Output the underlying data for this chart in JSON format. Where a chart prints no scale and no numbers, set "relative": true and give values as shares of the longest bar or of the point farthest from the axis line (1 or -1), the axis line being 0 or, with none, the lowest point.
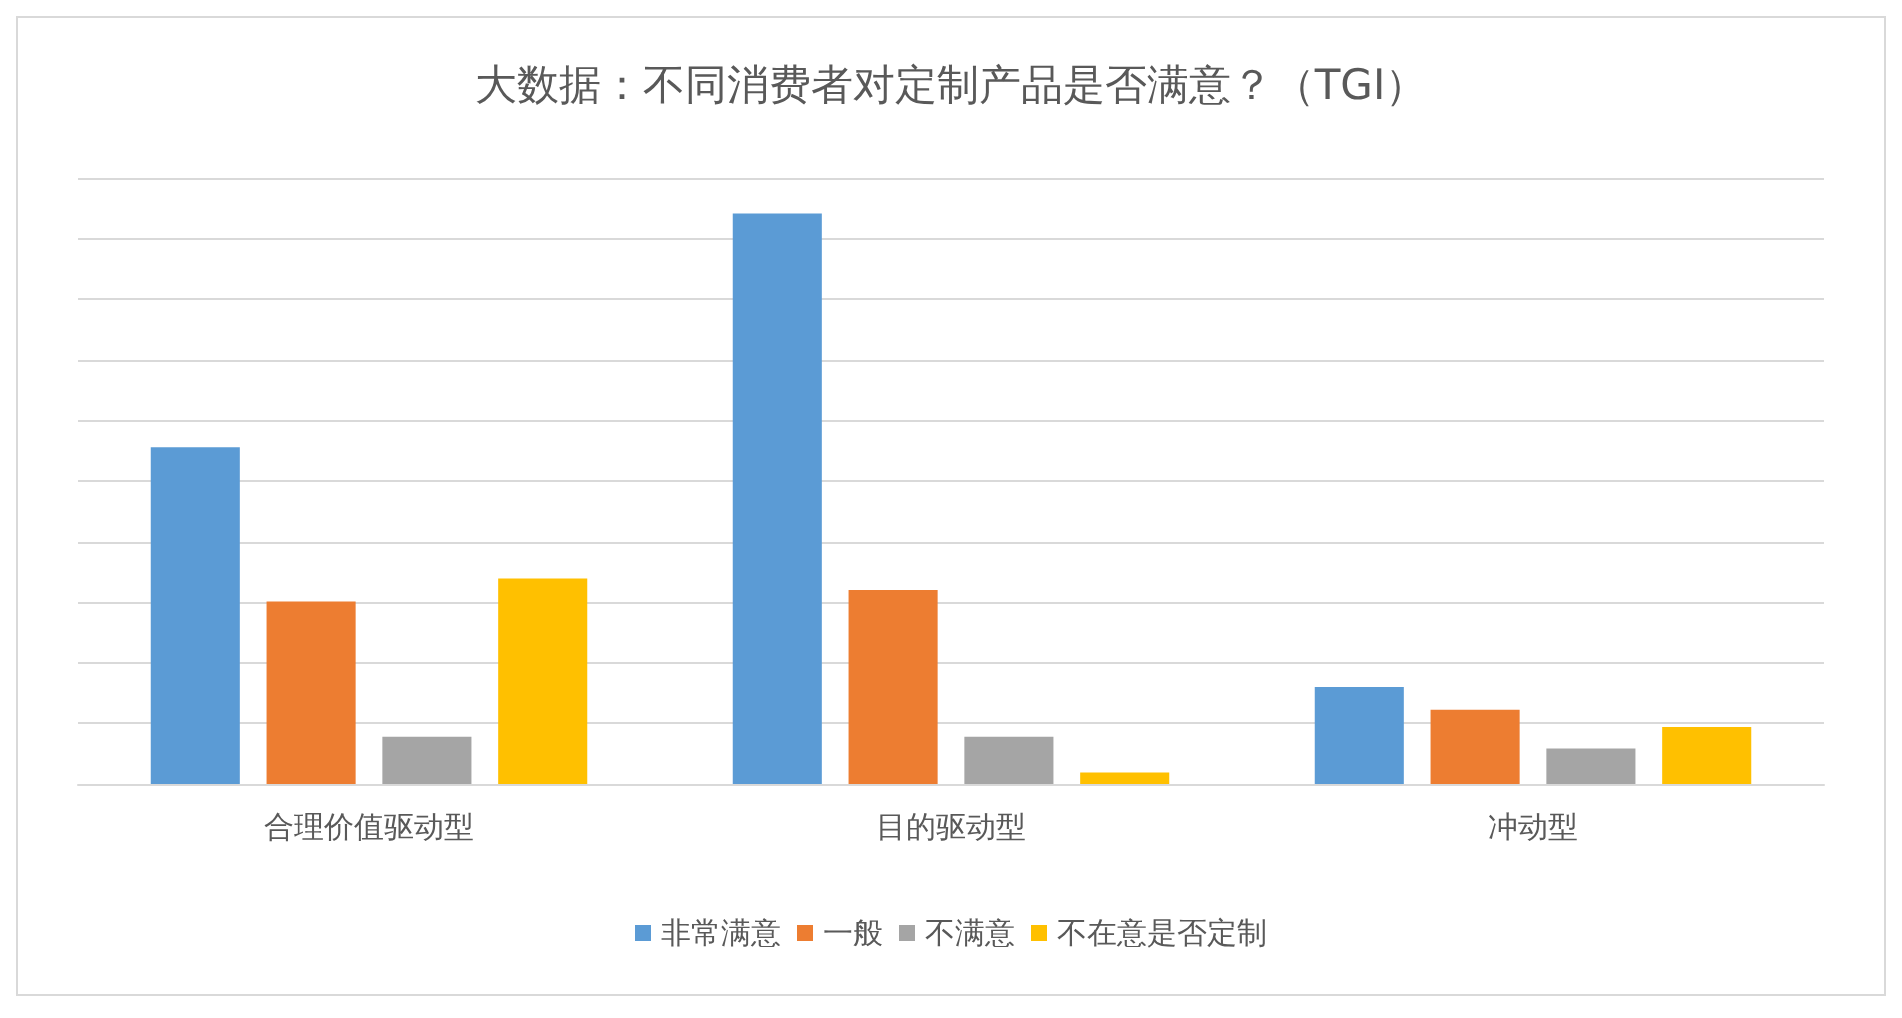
{
  "chart_data": {
    "type": "bar",
    "title": "大数据：不同消费者对定制产品是否满意？（TGI）",
    "categories": [
      "合理价值驱动型",
      "目的驱动型",
      "冲动型"
    ],
    "relative": true,
    "grid": "y",
    "legend": "bottom",
    "series": [
      {
        "name": "非常满意",
        "color": "#5b9bd5",
        "values": [
          0.59,
          1,
          0.17
        ]
      },
      {
        "name": "一般",
        "color": "#ed7d31",
        "values": [
          0.32,
          0.34,
          0.13
        ]
      },
      {
        "name": "不满意",
        "color": "#a5a5a5",
        "values": [
          0.083,
          0.083,
          0.062
        ]
      },
      {
        "name": "不在意是否定制",
        "color": "#ffc000",
        "values": [
          0.36,
          0.02,
          0.1
        ]
      }
    ]
  }
}
